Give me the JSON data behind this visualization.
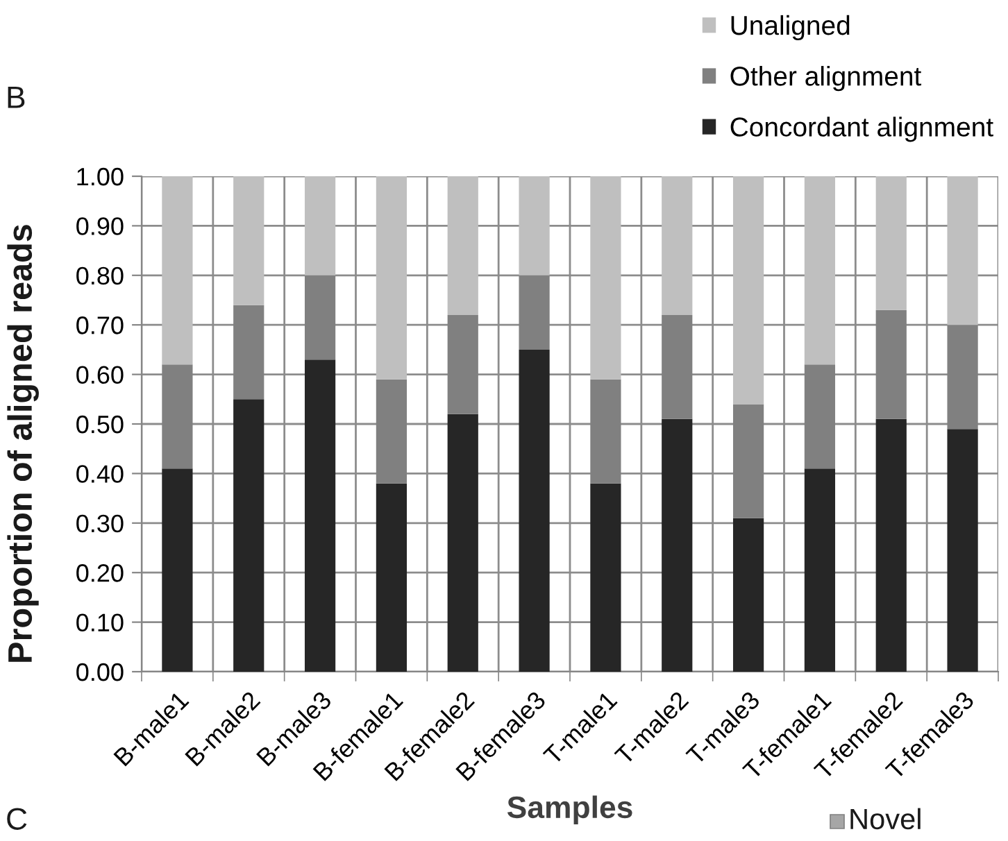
{
  "chart_data": {
    "type": "bar",
    "stacked": true,
    "categories": [
      "B-male1",
      "B-male2",
      "B-male3",
      "B-female1",
      "B-female2",
      "B-female3",
      "T-male1",
      "T-male2",
      "T-male3",
      "T-female1",
      "T-female2",
      "T-female3"
    ],
    "series": [
      {
        "name": "Concordant alignment",
        "color": "#262626",
        "values": [
          0.41,
          0.55,
          0.63,
          0.38,
          0.52,
          0.65,
          0.38,
          0.51,
          0.31,
          0.41,
          0.51,
          0.49
        ]
      },
      {
        "name": "Other alignment",
        "color": "#808080",
        "values": [
          0.21,
          0.19,
          0.17,
          0.21,
          0.2,
          0.15,
          0.21,
          0.21,
          0.23,
          0.21,
          0.22,
          0.21
        ]
      },
      {
        "name": "Unaligned",
        "color": "#bfbfbf",
        "values": [
          0.38,
          0.26,
          0.2,
          0.41,
          0.28,
          0.2,
          0.41,
          0.28,
          0.46,
          0.38,
          0.27,
          0.3
        ]
      }
    ],
    "xlabel": "Samples",
    "ylabel": "Proportion of aligned reads",
    "ylim": [
      0,
      1
    ],
    "yticks": [
      {
        "value": 0,
        "label": "0.00"
      },
      {
        "value": 0.1,
        "label": "0.10"
      },
      {
        "value": 0.2,
        "label": "0.20"
      },
      {
        "value": 0.3,
        "label": "0.30"
      },
      {
        "value": 0.4,
        "label": "0.40"
      },
      {
        "value": 0.5,
        "label": "0.50"
      },
      {
        "value": 0.6,
        "label": "0.60"
      },
      {
        "value": 0.7,
        "label": "0.70"
      },
      {
        "value": 0.8,
        "label": "0.80"
      },
      {
        "value": 0.9,
        "label": "0.90"
      },
      {
        "value": 1,
        "label": "1.00"
      }
    ],
    "grid": true,
    "legend": "top right",
    "annotations": [
      "B",
      "C",
      "Novel"
    ]
  }
}
